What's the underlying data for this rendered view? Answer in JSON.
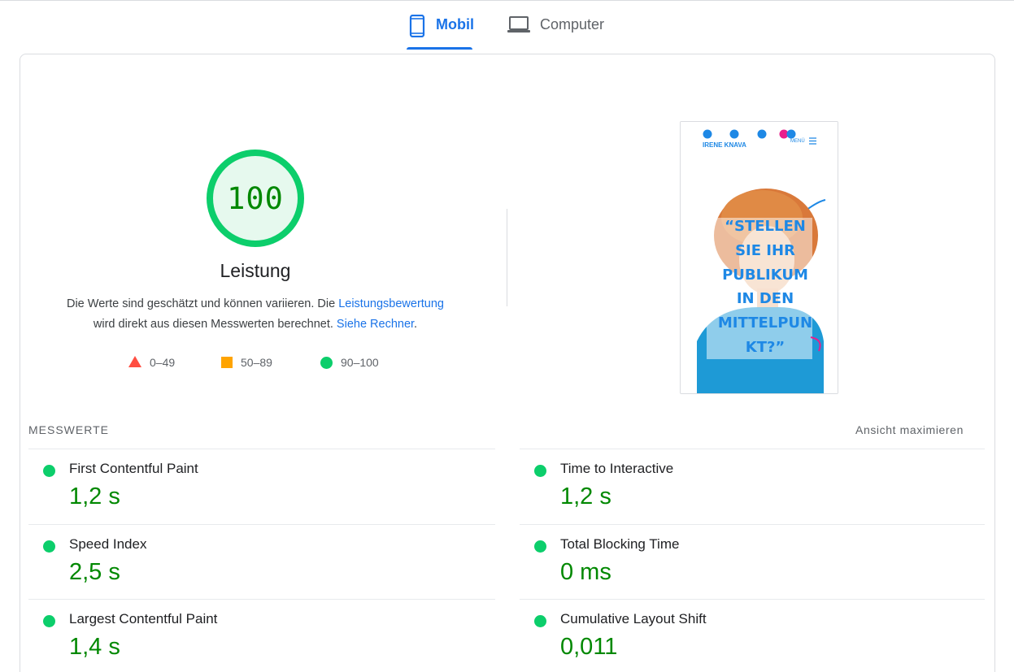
{
  "tabs": [
    {
      "label": "Mobil",
      "icon": "smartphone-icon",
      "active": true
    },
    {
      "label": "Computer",
      "icon": "laptop-icon",
      "active": false
    }
  ],
  "colors": {
    "pass": "#0cce6b",
    "average": "#ffa400",
    "fail": "#ff4e42",
    "accent": "#1a73e8",
    "score_text": "#008800"
  },
  "score": {
    "value": "100",
    "fraction": 1.0,
    "title": "Leistung",
    "desc_part1": "Die Werte sind geschätzt und können variieren. Die ",
    "desc_link1": "Leistungsbewertung",
    "desc_part2": " wird direkt aus diesen Messwerten berechnet. ",
    "desc_link2": "Siehe Rechner",
    "desc_part3": "."
  },
  "legend": [
    {
      "range": "0–49",
      "shape": "triangle"
    },
    {
      "range": "50–89",
      "shape": "square"
    },
    {
      "range": "90–100",
      "shape": "circle"
    }
  ],
  "screenshot": {
    "brand": "IRENE KNAVA",
    "menu": "MENÜ",
    "headline_lines": [
      "“STELLEN",
      "SIE IHR",
      "PUBLIKUM",
      "IN DEN",
      "MITTELPUN",
      "KT?”"
    ]
  },
  "metrics": {
    "header": "MESSWERTE",
    "expand_label": "Ansicht maximieren",
    "items": [
      {
        "label": "First Contentful Paint",
        "value": "1,2 s"
      },
      {
        "label": "Time to Interactive",
        "value": "1,2 s"
      },
      {
        "label": "Speed Index",
        "value": "2,5 s"
      },
      {
        "label": "Total Blocking Time",
        "value": "0 ms"
      },
      {
        "label": "Largest Contentful Paint",
        "value": "1,4 s"
      },
      {
        "label": "Cumulative Layout Shift",
        "value": "0,011"
      }
    ]
  }
}
